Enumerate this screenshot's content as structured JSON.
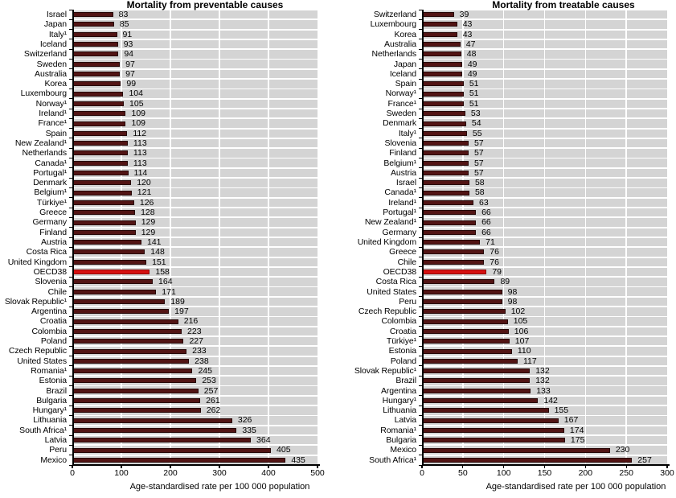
{
  "colors": {
    "bar": "#521414",
    "bar_border": "#260707",
    "highlight": "#d61010",
    "highlight_border": "#8c0606",
    "stripe": "#d4d4d4",
    "gridline": "#ffffff",
    "axis": "#000000"
  },
  "chart_data": [
    {
      "type": "bar",
      "orientation": "horizontal",
      "title": "Mortality from preventable causes",
      "xlabel": "Age-standardised rate per 100 000 population",
      "xlim": [
        0,
        500
      ],
      "xticks": [
        0,
        100,
        200,
        300,
        400,
        500
      ],
      "grid": "vertical-white-gridlines",
      "legend": "none",
      "highlight_label": "OECD38",
      "categories": [
        "Israel",
        "Japan",
        "Italy¹",
        "Iceland",
        "Switzerland",
        "Sweden",
        "Australia",
        "Korea",
        "Luxembourg",
        "Norway¹",
        "Ireland¹",
        "France¹",
        "Spain",
        "New Zealand¹",
        "Netherlands",
        "Canada¹",
        "Portugal¹",
        "Denmark",
        "Belgium¹",
        "Türkiye¹",
        "Greece",
        "Germany",
        "Finland",
        "Austria",
        "Costa Rica",
        "United Kingdom",
        "OECD38",
        "Slovenia",
        "Chile",
        "Slovak Republic¹",
        "Argentina",
        "Croatia",
        "Colombia",
        "Poland",
        "Czech Republic",
        "United States",
        "Romania¹",
        "Estonia",
        "Brazil",
        "Bulgaria",
        "Hungary¹",
        "Lithuania",
        "South Africa¹",
        "Latvia",
        "Peru",
        "Mexico"
      ],
      "values": [
        83,
        85,
        91,
        93,
        94,
        97,
        97,
        99,
        104,
        105,
        109,
        109,
        112,
        113,
        113,
        113,
        114,
        120,
        121,
        126,
        128,
        129,
        129,
        141,
        148,
        151,
        158,
        164,
        171,
        189,
        197,
        216,
        223,
        227,
        233,
        238,
        245,
        253,
        257,
        261,
        262,
        326,
        335,
        364,
        405,
        435
      ]
    },
    {
      "type": "bar",
      "orientation": "horizontal",
      "title": "Mortality from treatable causes",
      "xlabel": "Age-standardised rate per 100 000 population",
      "xlim": [
        0,
        300
      ],
      "xticks": [
        0,
        50,
        100,
        150,
        200,
        250,
        300
      ],
      "grid": "vertical-white-gridlines",
      "legend": "none",
      "highlight_label": "OECD38",
      "categories": [
        "Switzerland",
        "Luxembourg",
        "Korea",
        "Australia",
        "Netherlands",
        "Japan",
        "Iceland",
        "Spain",
        "Norway¹",
        "France¹",
        "Sweden",
        "Denmark",
        "Italy¹",
        "Slovenia",
        "Finland",
        "Belgium¹",
        "Austria",
        "Israel",
        "Canada¹",
        "Ireland¹",
        "Portugal¹",
        "New Zealand¹",
        "Germany",
        "United Kingdom",
        "Greece",
        "Chile",
        "OECD38",
        "Costa Rica",
        "United States",
        "Peru",
        "Czech Republic",
        "Colombia",
        "Croatia",
        "Türkiye¹",
        "Estonia",
        "Poland",
        "Slovak Republic¹",
        "Brazil",
        "Argentina",
        "Hungary¹",
        "Lithuania",
        "Latvia",
        "Romania¹",
        "Bulgaria",
        "Mexico",
        "South Africa¹"
      ],
      "values": [
        39,
        43,
        43,
        47,
        48,
        49,
        49,
        51,
        51,
        51,
        53,
        54,
        55,
        57,
        57,
        57,
        57,
        58,
        58,
        63,
        66,
        66,
        66,
        71,
        76,
        76,
        79,
        89,
        98,
        98,
        102,
        105,
        106,
        107,
        110,
        117,
        132,
        132,
        133,
        142,
        155,
        167,
        174,
        175,
        230,
        257
      ]
    }
  ]
}
